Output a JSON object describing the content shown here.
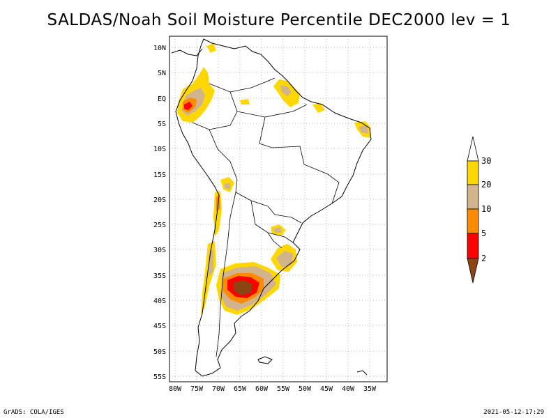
{
  "title": "SALDAS/Noah Soil Moisture Percentile DEC2000 lev = 1",
  "lat_labels": [
    "10N",
    "5N",
    "EQ",
    "5S",
    "10S",
    "15S",
    "20S",
    "25S",
    "30S",
    "35S",
    "40S",
    "45S",
    "50S",
    "55S"
  ],
  "lon_labels": [
    "80W",
    "75W",
    "70W",
    "65W",
    "60W",
    "55W",
    "50W",
    "45W",
    "40W",
    "35W"
  ],
  "colorbar": {
    "labels": [
      "30",
      "20",
      "10",
      "5",
      "2"
    ],
    "colors": {
      "above_30": "#ffffff",
      "20_30": "#ffd700",
      "10_20": "#d2b48c",
      "5_10": "#ff8c00",
      "2_5": "#ff0000",
      "below_2": "#8b4513"
    }
  },
  "footer": {
    "left": "GrADS: COLA/IGES",
    "right": "2021-05-12-17:29"
  }
}
